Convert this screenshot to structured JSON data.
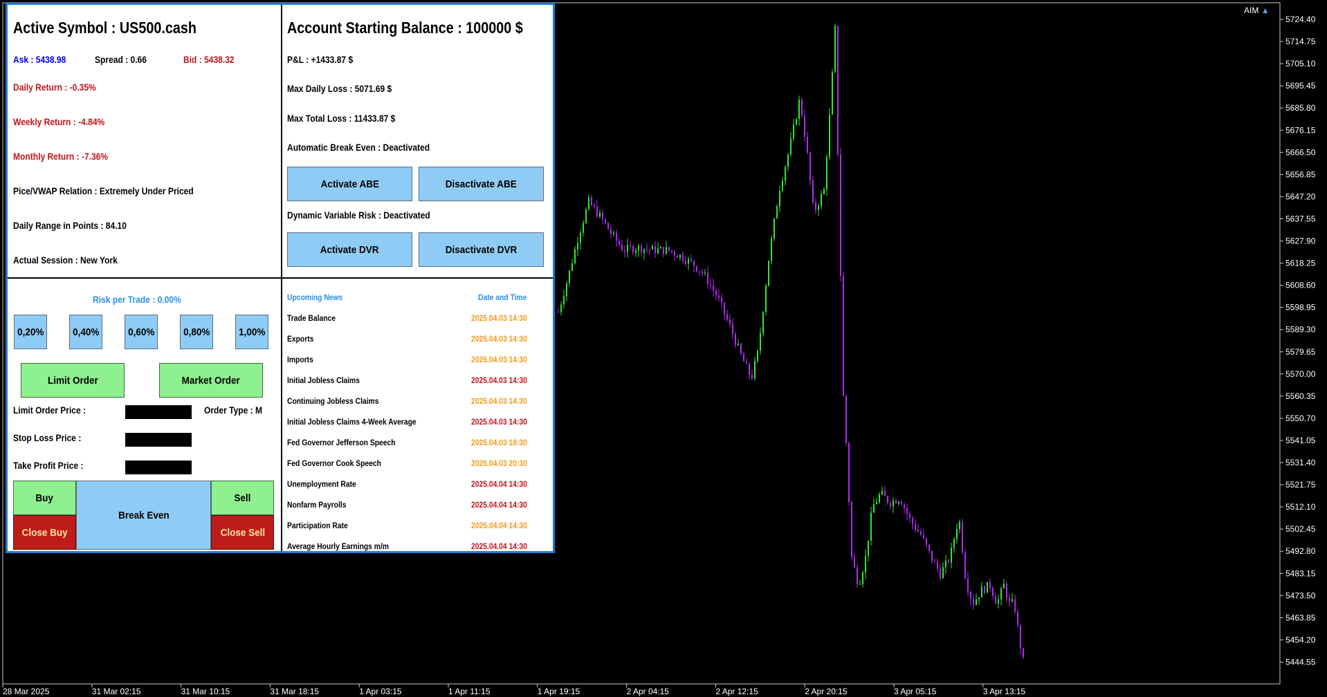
{
  "chart_corner_label": "AIM",
  "price_axis": {
    "labels": [
      "5724.40",
      "5714.75",
      "5705.10",
      "5695.45",
      "5685.80",
      "5676.15",
      "5666.50",
      "5656.85",
      "5647.20",
      "5637.55",
      "5627.90",
      "5618.25",
      "5608.60",
      "5598.95",
      "5589.30",
      "5579.65",
      "5570.00",
      "5560.35",
      "5550.70",
      "5541.05",
      "5531.40",
      "5521.75",
      "5512.10",
      "5502.45",
      "5492.80",
      "5483.15",
      "5473.50",
      "5463.85",
      "5454.20",
      "5444.55"
    ]
  },
  "time_axis": {
    "labels": [
      "28 Mar 2025",
      "31 Mar 02:15",
      "31 Mar 10:15",
      "31 Mar 18:15",
      "1 Apr 03:15",
      "1 Apr 11:15",
      "1 Apr 19:15",
      "2 Apr 04:15",
      "2 Apr 12:15",
      "2 Apr 20:15",
      "3 Apr 05:15",
      "3 Apr 13:15"
    ]
  },
  "colors": {
    "bull": "#32e832",
    "bear": "#b22af2",
    "panel_border": "#1e7ad6",
    "button_blue": "#8fccf5",
    "button_green": "#8ef08e",
    "button_red": "#be1b1b"
  },
  "symbol_panel": {
    "title": "Active Symbol : US500.cash",
    "ask": "Ask : 5438.98",
    "spread": "Spread : 0.66",
    "bid": "Bid : 5438.32",
    "daily_return": "Daily Return : -0.35%",
    "weekly_return": "Weekly Return : -4.84%",
    "monthly_return": "Monthly Return : -7.36%",
    "vwap": "Pice/VWAP Relation : Extremely Under Priced",
    "daily_range": "Daily Range in Points : 84.10",
    "session": "Actual Session : New York"
  },
  "account_panel": {
    "title": "Account Starting Balance : 100000 $",
    "pnl": "P&L : +1433.87 $",
    "max_daily_loss": "Max Daily Loss : 5071.69 $",
    "max_total_loss": "Max Total Loss : 11433.87 $",
    "abe_status": "Automatic Break Even : Deactivated",
    "activate_abe": "Activate ABE",
    "deactivate_abe": "Disactivate ABE",
    "dvr_status": "Dynamic Variable Risk : Deactivated",
    "activate_dvr": "Activate DVR",
    "deactivate_dvr": "Disactivate DVR"
  },
  "trade_panel": {
    "risk_label": "Risk per Trade : 0.00%",
    "risk_buttons": [
      "0,20%",
      "0,40%",
      "0,60%",
      "0,80%",
      "1,00%"
    ],
    "limit_order": "Limit Order",
    "market_order": "Market Order",
    "limit_price_label": "Limit Order Price :",
    "order_type": "Order Type : M",
    "stop_loss_label": "Stop Loss Price :",
    "take_profit_label": "Take Profit Price :",
    "buy": "Buy",
    "break_even": "Break Even",
    "sell": "Sell",
    "close_buy": "Close Buy",
    "close_sell": "Close Sell"
  },
  "news_panel": {
    "header_left": "Upcoming News",
    "header_right": "Date and Time",
    "items": [
      {
        "name": "Trade Balance",
        "time": "2025.04.03 14:30",
        "impact": "medium"
      },
      {
        "name": "Exports",
        "time": "2025.04.03 14:30",
        "impact": "medium"
      },
      {
        "name": "Imports",
        "time": "2025.04.03 14:30",
        "impact": "medium"
      },
      {
        "name": "Initial Jobless Claims",
        "time": "2025.04.03 14:30",
        "impact": "high"
      },
      {
        "name": "Continuing Jobless Claims",
        "time": "2025.04.03 14:30",
        "impact": "medium"
      },
      {
        "name": "Initial Jobless Claims 4-Week Average",
        "time": "2025.04.03 14:30",
        "impact": "high"
      },
      {
        "name": "Fed Governor Jefferson Speech",
        "time": "2025.04.03 18:30",
        "impact": "medium"
      },
      {
        "name": "Fed Governor Cook Speech",
        "time": "2025.04.03 20:30",
        "impact": "medium"
      },
      {
        "name": "Unemployment Rate",
        "time": "2025.04.04 14:30",
        "impact": "high"
      },
      {
        "name": "Nonfarm Payrolls",
        "time": "2025.04.04 14:30",
        "impact": "high"
      },
      {
        "name": "Participation Rate",
        "time": "2025.04.04 14:30",
        "impact": "medium"
      },
      {
        "name": "Average Hourly Earnings m/m",
        "time": "2025.04.04 14:30",
        "impact": "high"
      }
    ]
  }
}
